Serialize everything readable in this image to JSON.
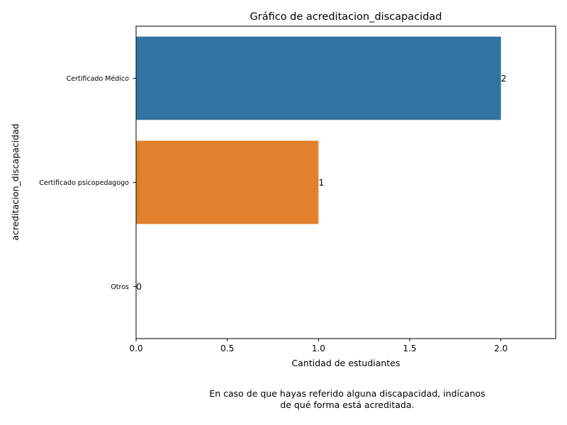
{
  "chart_data": {
    "type": "bar",
    "orientation": "horizontal",
    "title": "Gráfico de acreditacion_discapacidad",
    "xlabel": "Cantidad de estudiantes",
    "ylabel": "acreditacion_discapacidad",
    "categories": [
      "Certificado Médico",
      "Certificado psicopedagogo",
      "Otros"
    ],
    "values": [
      2,
      1,
      0
    ],
    "data_labels": [
      "2",
      "1",
      "0"
    ],
    "colors": [
      "#3274a1",
      "#e1812c",
      "#3a923a"
    ],
    "xlim": [
      0,
      2.3
    ],
    "xticks": [
      0.0,
      0.5,
      1.0,
      1.5,
      2.0
    ],
    "xtick_labels": [
      "0.0",
      "0.5",
      "1.0",
      "1.5",
      "2.0"
    ],
    "grid": false,
    "legend": false
  },
  "caption": {
    "line1": "En caso de que hayas referido alguna discapacidad, indícanos",
    "line2": "de qué forma está acreditada."
  }
}
